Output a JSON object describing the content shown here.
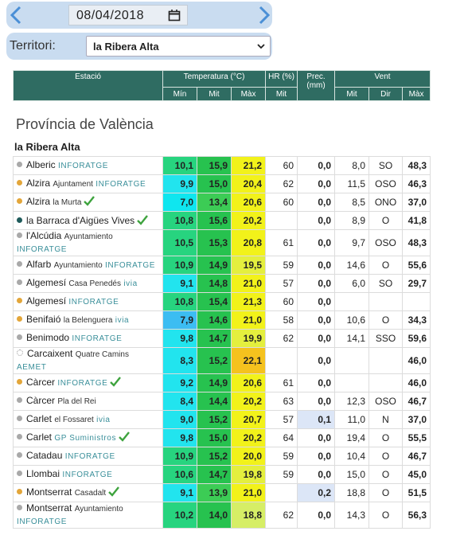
{
  "nav": {
    "date": "08/04/2018",
    "territory_label": "Territori:",
    "territory": "la Ribera Alta"
  },
  "table": {
    "header": {
      "station": "Estació",
      "temperature": "Temperatura (°C)",
      "humidity": "HR (%)",
      "precipitation": "Prec. (mm)",
      "wind": "Vent",
      "sub": [
        "Mín",
        "Mit",
        "Màx",
        "Mit",
        "Mit",
        "Dir",
        "Màx"
      ]
    },
    "province": "Província de València",
    "region": "la Ribera Alta",
    "rows": [
      {
        "name": "Alberic",
        "source": "INFORATGE",
        "dot": "#a9a9a9",
        "values": [
          "10,1",
          "15,9",
          "21,2",
          "60",
          "0,0",
          "8,0",
          "SO",
          "48,3"
        ]
      },
      {
        "name": "Alzira",
        "place": "Ajuntament",
        "source": "INFORATGE",
        "dot": "#e3a63a",
        "values": [
          "9,9",
          "15,0",
          "20,4",
          "62",
          "0,0",
          "11,5",
          "OSO",
          "46,3"
        ]
      },
      {
        "name": "Alzira",
        "place": "la Murta",
        "dot": "#e3a63a",
        "check": true,
        "values": [
          "7,0",
          "13,4",
          "20,6",
          "60",
          "0,0",
          "8,5",
          "ONO",
          "37,0"
        ]
      },
      {
        "name": "la Barraca d'Aigües Vives",
        "dot": "#1f5b5b",
        "check": true,
        "values": [
          "10,8",
          "15,6",
          "20,2",
          null,
          "0,0",
          "8,9",
          "O",
          "41,8"
        ]
      },
      {
        "name": "l'Alcúdia",
        "place": "Ayuntamiento",
        "source": "INFORATGE",
        "dot": "#a9a9a9",
        "values": [
          "10,5",
          "15,3",
          "20,8",
          "61",
          "0,0",
          "9,7",
          "OSO",
          "48,3"
        ]
      },
      {
        "name": "Alfarb",
        "place": "Ayuntamiento",
        "source": "INFORATGE",
        "dot": "#a9a9a9",
        "values": [
          "10,9",
          "14,9",
          "19,5",
          "59",
          "0,0",
          "14,6",
          "O",
          "55,6"
        ]
      },
      {
        "name": "Algemesí",
        "place": "Casa Penedés",
        "source": "ivia",
        "dot": "#a9a9a9",
        "values": [
          "9,1",
          "14,8",
          "21,0",
          "57",
          "0,0",
          "6,0",
          "SO",
          "29,7"
        ]
      },
      {
        "name": "Algemesí",
        "source": "INFORATGE",
        "dot": "#e3a63a",
        "values": [
          "10,8",
          "15,4",
          "21,3",
          "60",
          "0,0",
          null,
          null,
          null
        ]
      },
      {
        "name": "Benifaió",
        "place": "la Belenguera",
        "source": "ivia",
        "dot": "#e3a63a",
        "values": [
          "7,9",
          "14,6",
          "21,0",
          "58",
          "0,0",
          "10,6",
          "O",
          "34,3"
        ]
      },
      {
        "name": "Benimodo",
        "source": "INFORATGE",
        "dot": "#a9a9a9",
        "values": [
          "9,8",
          "14,7",
          "19,9",
          "62",
          "0,0",
          "14,1",
          "SSO",
          "59,6"
        ]
      },
      {
        "name": "Carcaixent",
        "place": "Quatre Camins",
        "source": "AEMET",
        "dot": "none",
        "values": [
          "8,3",
          "15,2",
          "22,1",
          null,
          "0,0",
          null,
          null,
          "46,0"
        ]
      },
      {
        "name": "Càrcer",
        "source": "INFORATGE",
        "dot": "#e3a63a",
        "check": true,
        "values": [
          "9,2",
          "14,9",
          "20,6",
          "61",
          "0,0",
          null,
          null,
          "46,0"
        ]
      },
      {
        "name": "Càrcer",
        "place": "Pla del Rei",
        "dot": "#a9a9a9",
        "values": [
          "8,4",
          "14,4",
          "20,2",
          "63",
          "0,0",
          "12,3",
          "OSO",
          "46,7"
        ]
      },
      {
        "name": "Carlet",
        "place": "el Fossaret",
        "source": "ivia",
        "dot": "#a9a9a9",
        "values": [
          "9,0",
          "15,2",
          "20,7",
          "57",
          "0,1",
          "11,0",
          "N",
          "37,0"
        ]
      },
      {
        "name": "Carlet",
        "source": "GP Suministros",
        "dot": "#a9a9a9",
        "check": true,
        "values": [
          "9,8",
          "15,0",
          "20,2",
          "64",
          "0,0",
          "19,4",
          "O",
          "55,5"
        ]
      },
      {
        "name": "Catadau",
        "source": "INFORATGE",
        "dot": "#a9a9a9",
        "values": [
          "10,9",
          "15,2",
          "20,0",
          "59",
          "0,0",
          "10,4",
          "O",
          "46,7"
        ]
      },
      {
        "name": "Llombai",
        "source": "INFORATGE",
        "dot": "#a9a9a9",
        "values": [
          "10,6",
          "14,7",
          "19,8",
          "59",
          "0,0",
          "15,0",
          "O",
          "45,0"
        ]
      },
      {
        "name": "Montserrat",
        "place": "Casadalt",
        "dot": "#e3a63a",
        "check": true,
        "values": [
          "9,1",
          "13,9",
          "21,0",
          null,
          "0,2",
          "18,8",
          "O",
          "51,5"
        ]
      },
      {
        "name": "Montserrat",
        "place": "Ayuntamiento",
        "source": "INFORATGE",
        "dot": "#a9a9a9",
        "values": [
          "10,2",
          "14,0",
          "18,8",
          "62",
          "0,0",
          "14,3",
          "O",
          "56,3"
        ]
      }
    ]
  }
}
